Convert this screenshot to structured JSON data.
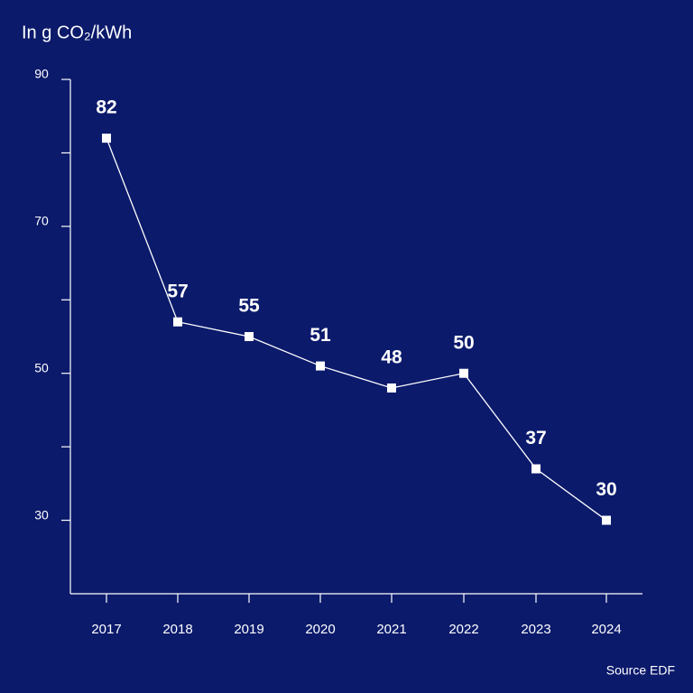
{
  "chart_data": {
    "type": "line",
    "title": "In g CO₂/kWh",
    "source": "Source EDF",
    "categories": [
      "2017",
      "2018",
      "2019",
      "2020",
      "2021",
      "2022",
      "2023",
      "2024"
    ],
    "values": [
      82,
      57,
      55,
      51,
      48,
      50,
      37,
      30
    ],
    "color": "#ffffff",
    "background": "#0b1a6b",
    "ylim": [
      20,
      90
    ],
    "yticks": [
      30,
      50,
      70,
      90
    ],
    "minor_yticks": [
      40,
      60,
      80
    ]
  }
}
